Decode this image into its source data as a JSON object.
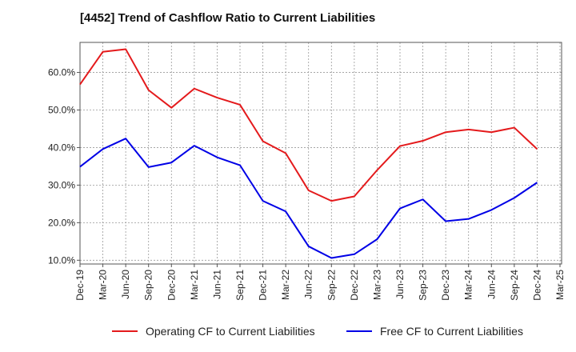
{
  "chart_data": {
    "type": "line",
    "title": "[4452]  Trend of Cashflow Ratio to Current Liabilities",
    "xlabel": "",
    "ylabel": "",
    "categories": [
      "Dec-19",
      "Mar-20",
      "Jun-20",
      "Sep-20",
      "Dec-20",
      "Mar-21",
      "Jun-21",
      "Sep-21",
      "Dec-21",
      "Mar-22",
      "Jun-22",
      "Sep-22",
      "Dec-22",
      "Mar-23",
      "Jun-23",
      "Sep-23",
      "Dec-23",
      "Mar-24",
      "Jun-24",
      "Sep-24",
      "Dec-24",
      "Mar-25"
    ],
    "y_tick_labels": [
      "10.0%",
      "20.0%",
      "30.0%",
      "40.0%",
      "50.0%",
      "60.0%"
    ],
    "y_ticks": [
      10,
      20,
      30,
      40,
      50,
      60
    ],
    "ylim": [
      9,
      68
    ],
    "grid": true,
    "legend_position": "bottom",
    "series": [
      {
        "name": "Operating CF to Current Liabilities",
        "color": "#e41a1c",
        "values": [
          56.8,
          65.5,
          66.2,
          55.3,
          50.6,
          55.7,
          53.3,
          51.4,
          41.7,
          38.5,
          28.6,
          25.8,
          27.0,
          34.0,
          40.4,
          41.8,
          44.1,
          44.8,
          44.1,
          45.3,
          39.6,
          null
        ]
      },
      {
        "name": "Free CF to Current Liabilities",
        "color": "#0000e6",
        "values": [
          34.9,
          39.6,
          42.4,
          34.8,
          36.0,
          40.5,
          37.4,
          35.3,
          25.8,
          23.0,
          13.7,
          10.6,
          11.6,
          15.6,
          23.8,
          26.2,
          20.4,
          21.0,
          23.4,
          26.6,
          30.7,
          null
        ]
      }
    ]
  }
}
